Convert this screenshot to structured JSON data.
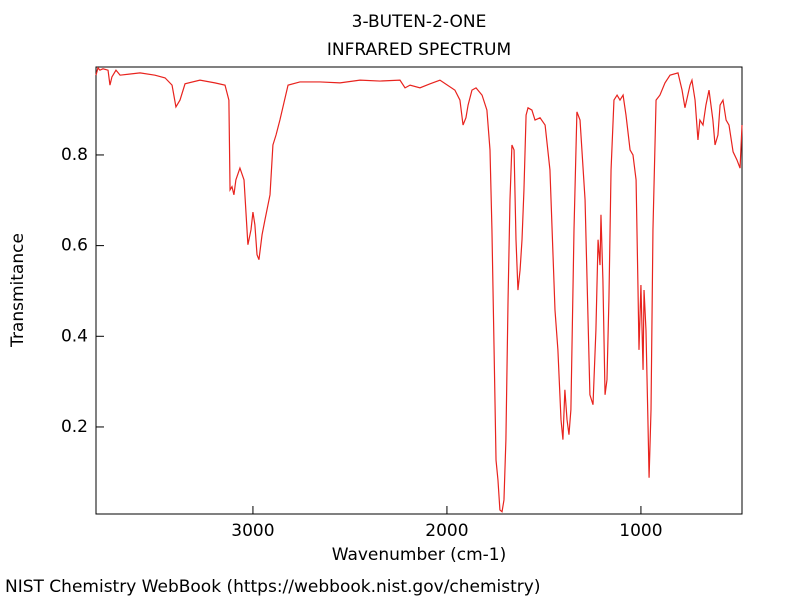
{
  "chart_data": {
    "type": "line",
    "title": "3-BUTEN-2-ONE",
    "subtitle": "INFRARED SPECTRUM",
    "x_label": "Wavenumber (cm-1)",
    "y_label": "Transmitance",
    "source": "NIST Chemistry WebBook (https://webbook.nist.gov/chemistry)",
    "color": "#e8231e",
    "xlim": [
      3809,
      479
    ],
    "ylim": [
      0.008,
      0.994
    ],
    "xticks": [
      3000,
      2000,
      1000
    ],
    "yticks": [
      0.2,
      0.4,
      0.6,
      0.8
    ],
    "x": [
      3809,
      3799,
      3789,
      3773,
      3747,
      3737,
      3727,
      3706,
      3685,
      3582,
      3505,
      3453,
      3417,
      3397,
      3376,
      3350,
      3273,
      3196,
      3144,
      3124,
      3118,
      3108,
      3098,
      3088,
      3067,
      3046,
      3026,
      3010,
      3000,
      2990,
      2979,
      2969,
      2953,
      2938,
      2912,
      2897,
      2881,
      2861,
      2819,
      2758,
      2654,
      2551,
      2448,
      2345,
      2242,
      2216,
      2190,
      2139,
      2087,
      2036,
      1959,
      1933,
      1917,
      1902,
      1891,
      1871,
      1850,
      1819,
      1794,
      1778,
      1768,
      1757,
      1747,
      1737,
      1727,
      1716,
      1706,
      1696,
      1685,
      1675,
      1665,
      1654,
      1644,
      1634,
      1623,
      1613,
      1603,
      1592,
      1582,
      1562,
      1546,
      1520,
      1494,
      1469,
      1443,
      1428,
      1412,
      1402,
      1392,
      1381,
      1371,
      1361,
      1345,
      1330,
      1314,
      1288,
      1263,
      1247,
      1232,
      1221,
      1211,
      1206,
      1196,
      1185,
      1175,
      1165,
      1154,
      1139,
      1123,
      1108,
      1092,
      1077,
      1056,
      1041,
      1025,
      1015,
      1010,
      1000,
      989,
      984,
      974,
      964,
      958,
      948,
      938,
      922,
      902,
      876,
      850,
      809,
      788,
      773,
      747,
      737,
      721,
      706,
      696,
      680,
      665,
      649,
      629,
      618,
      603,
      592,
      577,
      561,
      546,
      525,
      505,
      489,
      479
    ],
    "values": [
      0.976,
      0.992,
      0.987,
      0.99,
      0.987,
      0.954,
      0.972,
      0.987,
      0.976,
      0.981,
      0.976,
      0.97,
      0.954,
      0.906,
      0.921,
      0.957,
      0.965,
      0.959,
      0.954,
      0.921,
      0.723,
      0.73,
      0.712,
      0.745,
      0.771,
      0.745,
      0.602,
      0.635,
      0.674,
      0.646,
      0.58,
      0.569,
      0.624,
      0.657,
      0.712,
      0.822,
      0.844,
      0.877,
      0.954,
      0.961,
      0.961,
      0.959,
      0.965,
      0.963,
      0.965,
      0.948,
      0.954,
      0.948,
      0.957,
      0.965,
      0.943,
      0.921,
      0.866,
      0.882,
      0.91,
      0.943,
      0.948,
      0.932,
      0.899,
      0.811,
      0.635,
      0.37,
      0.127,
      0.083,
      0.017,
      0.013,
      0.039,
      0.172,
      0.48,
      0.701,
      0.822,
      0.811,
      0.613,
      0.502,
      0.546,
      0.613,
      0.723,
      0.888,
      0.904,
      0.899,
      0.877,
      0.882,
      0.866,
      0.767,
      0.458,
      0.37,
      0.216,
      0.172,
      0.282,
      0.216,
      0.183,
      0.238,
      0.635,
      0.895,
      0.877,
      0.701,
      0.271,
      0.249,
      0.414,
      0.613,
      0.557,
      0.668,
      0.524,
      0.271,
      0.304,
      0.48,
      0.767,
      0.921,
      0.932,
      0.921,
      0.932,
      0.888,
      0.811,
      0.8,
      0.745,
      0.502,
      0.37,
      0.513,
      0.326,
      0.502,
      0.414,
      0.216,
      0.088,
      0.238,
      0.635,
      0.921,
      0.932,
      0.959,
      0.976,
      0.981,
      0.943,
      0.904,
      0.954,
      0.965,
      0.921,
      0.833,
      0.877,
      0.866,
      0.91,
      0.943,
      0.877,
      0.822,
      0.844,
      0.91,
      0.921,
      0.877,
      0.866,
      0.807,
      0.789,
      0.771,
      0.866
    ]
  }
}
